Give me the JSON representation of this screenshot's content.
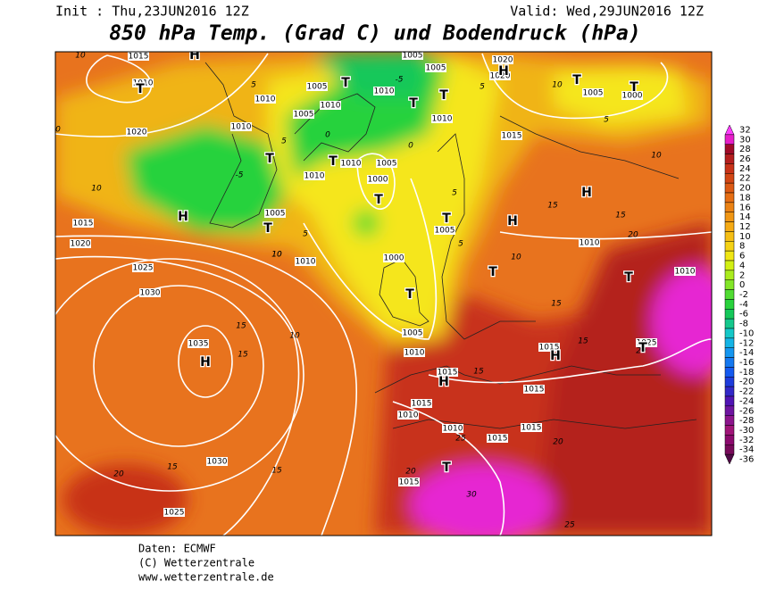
{
  "header": {
    "init": "Init : Thu,23JUN2016 12Z",
    "valid": "Valid: Wed,29JUN2016 12Z",
    "title": "850 hPa Temp. (Grad C) und Bodendruck (hPa)"
  },
  "map": {
    "pressure_labels": [
      1015,
      1010,
      1020,
      1015,
      1020,
      1025,
      1030,
      1035,
      1030,
      1025,
      1010,
      1005,
      1010,
      1005,
      1010,
      1010,
      1005,
      1010,
      1010,
      1005,
      1000,
      1000,
      1005,
      1010,
      1010,
      1005,
      1010,
      1020,
      1020,
      1005,
      1000,
      1015,
      1005,
      1010,
      1010,
      1015,
      1025,
      1015,
      1015,
      1015,
      1010,
      1015,
      1015,
      1010,
      1015,
      1005
    ],
    "temperature_labels": [
      10,
      10,
      15,
      15,
      10,
      15,
      15,
      20,
      5,
      10,
      5,
      -5,
      0,
      5,
      0,
      -5,
      5,
      10,
      5,
      10,
      15,
      15,
      20,
      15,
      15,
      20,
      15,
      20,
      25,
      30,
      25,
      20,
      5,
      5,
      10,
      10,
      0
    ],
    "centers": [
      "H",
      "T",
      "H",
      "H",
      "T",
      "T",
      "T",
      "T",
      "T",
      "T",
      "T",
      "T",
      "T",
      "H",
      "H",
      "T",
      "T",
      "T",
      "H",
      "H",
      "T",
      "H",
      "T",
      "T"
    ]
  },
  "legend": {
    "labels": [
      32,
      30,
      28,
      26,
      24,
      22,
      20,
      18,
      16,
      14,
      12,
      10,
      8,
      6,
      4,
      2,
      0,
      -2,
      -4,
      -6,
      -8,
      -10,
      -12,
      -14,
      -16,
      -18,
      -20,
      -22,
      -24,
      -26,
      -28,
      -30,
      -32,
      -34,
      -36
    ],
    "colors": [
      "#ff3cff",
      "#e61ec8",
      "#a00a28",
      "#b41e1e",
      "#c83218",
      "#d24614",
      "#dc5a14",
      "#e66e14",
      "#eb8214",
      "#f09614",
      "#f5aa14",
      "#f5be14",
      "#f5d214",
      "#f0e614",
      "#d2f014",
      "#aaec1e",
      "#82e628",
      "#50dc32",
      "#28d23c",
      "#14c85a",
      "#14c88c",
      "#14c8c8",
      "#14b4e6",
      "#1496f0",
      "#1478f0",
      "#145af0",
      "#1e3cdc",
      "#3228c8",
      "#5014b4",
      "#6e14a0",
      "#8c148c",
      "#a01478",
      "#8c0a6e",
      "#780a5a",
      "#500a46"
    ]
  },
  "footer": {
    "source": "Daten: ECMWF",
    "copyright": "(C) Wetterzentrale",
    "url": "www.wetterzentrale.de"
  }
}
